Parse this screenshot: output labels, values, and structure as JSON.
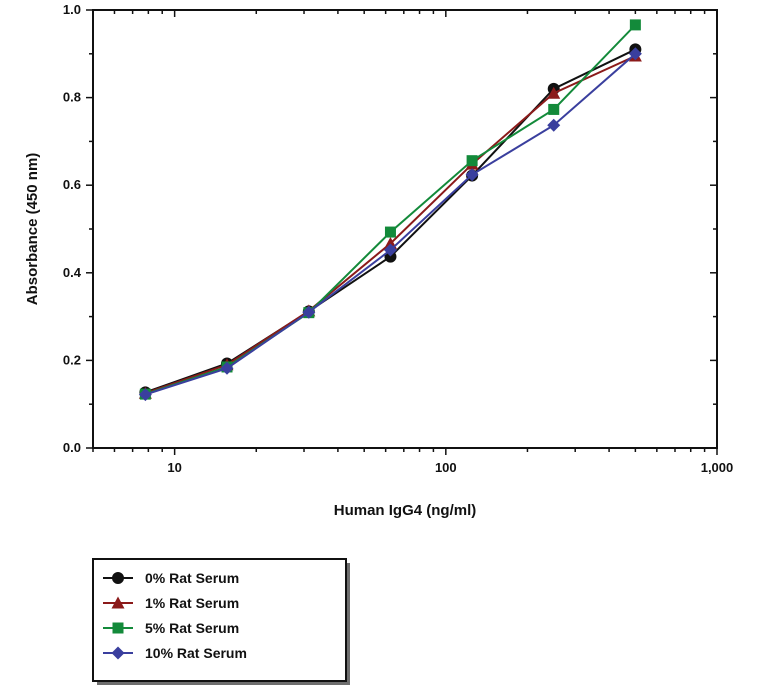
{
  "chart_data": {
    "type": "line",
    "title": "",
    "xlabel": "Human IgG4 (ng/ml)",
    "ylabel": "Absorbance (450 nm)",
    "x_scale": "log",
    "xlim": [
      5,
      1000
    ],
    "ylim": [
      0,
      1.0
    ],
    "x_ticks": [
      10,
      100,
      1000
    ],
    "x_tick_labels": [
      "10",
      "100",
      "1,000"
    ],
    "y_ticks": [
      0,
      0.2,
      0.4,
      0.6,
      0.8,
      1.0
    ],
    "y_tick_labels": [
      "0.0",
      "0.2",
      "0.4",
      "0.6",
      "0.8",
      "1.0"
    ],
    "grid": false,
    "legend_position": "bottom-left",
    "x": [
      7.8,
      15.6,
      31.25,
      62.5,
      125,
      250,
      500
    ],
    "series": [
      {
        "name": "0% Rat Serum",
        "color": "#111111",
        "marker": "circle",
        "values": [
          0.127,
          0.193,
          0.312,
          0.437,
          0.622,
          0.82,
          0.91
        ]
      },
      {
        "name": "1% Rat Serum",
        "color": "#8b1a1a",
        "marker": "triangle",
        "values": [
          0.125,
          0.19,
          0.313,
          0.467,
          0.648,
          0.81,
          0.895
        ]
      },
      {
        "name": "5% Rat Serum",
        "color": "#138a3a",
        "marker": "square",
        "values": [
          0.123,
          0.185,
          0.309,
          0.493,
          0.656,
          0.773,
          0.966
        ]
      },
      {
        "name": "10% Rat Serum",
        "color": "#3a3f9e",
        "marker": "diamond",
        "values": [
          0.122,
          0.182,
          0.31,
          0.452,
          0.624,
          0.737,
          0.9
        ]
      }
    ]
  }
}
